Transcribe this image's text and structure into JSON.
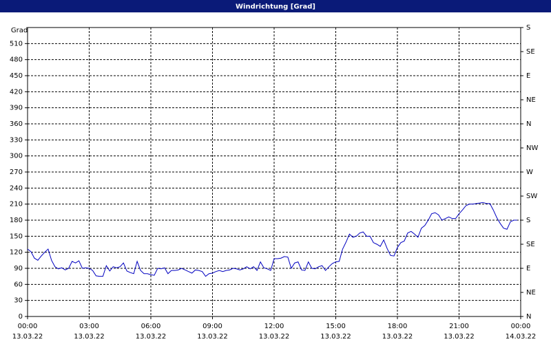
{
  "chart_data": {
    "type": "line",
    "title": "Windrichtung [Grad]",
    "y_label": "Grad",
    "x": [
      0,
      10,
      20,
      30,
      40,
      50,
      60,
      70,
      80,
      90,
      100,
      110,
      120,
      130,
      140,
      150,
      160,
      170,
      180,
      190,
      200,
      210,
      220,
      230,
      240,
      250,
      260,
      270,
      280,
      290,
      300,
      310,
      320,
      330,
      340,
      350,
      360,
      370,
      380,
      390,
      400,
      410,
      420,
      430,
      440,
      450,
      460,
      470,
      480,
      490,
      500,
      510,
      520,
      530,
      540,
      550,
      560,
      570,
      580,
      590,
      600,
      610,
      620,
      630,
      640,
      650,
      660,
      670,
      680,
      690,
      700,
      710,
      720,
      730,
      740,
      750,
      760,
      770,
      780,
      790,
      800,
      810,
      820,
      830,
      840,
      850,
      860,
      870,
      880,
      890,
      900,
      910,
      920,
      930,
      940,
      950,
      960,
      970,
      980,
      990,
      1000,
      1010,
      1020,
      1030,
      1040,
      1050,
      1060,
      1070,
      1080,
      1090,
      1100,
      1110,
      1120,
      1130,
      1140,
      1150,
      1160,
      1170,
      1180,
      1190,
      1200,
      1210,
      1220,
      1230,
      1240,
      1250,
      1260,
      1270,
      1280,
      1290,
      1300,
      1310,
      1320,
      1330,
      1340,
      1350,
      1360,
      1370,
      1380,
      1390,
      1400,
      1410,
      1420,
      1430
    ],
    "series": [
      {
        "name": "Windrichtung",
        "color": "#0000c0",
        "values": [
          126,
          121,
          109,
          105,
          113,
          120,
          126,
          105,
          93,
          89,
          91,
          87,
          90,
          103,
          100,
          104,
          90,
          91,
          90,
          86,
          76,
          75,
          75,
          95,
          85,
          93,
          91,
          93,
          100,
          85,
          82,
          80,
          103,
          86,
          80,
          80,
          78,
          77,
          90,
          89,
          91,
          80,
          86,
          86,
          87,
          90,
          87,
          84,
          81,
          87,
          86,
          84,
          75,
          80,
          81,
          84,
          86,
          84,
          86,
          87,
          90,
          89,
          87,
          89,
          93,
          89,
          93,
          86,
          102,
          91,
          89,
          86,
          108,
          108,
          109,
          112,
          111,
          90,
          100,
          102,
          87,
          86,
          102,
          90,
          89,
          93,
          95,
          86,
          93,
          99,
          102,
          103,
          126,
          139,
          154,
          148,
          150,
          156,
          158,
          150,
          150,
          138,
          135,
          131,
          143,
          127,
          114,
          113,
          129,
          138,
          141,
          156,
          159,
          154,
          148,
          165,
          170,
          180,
          192,
          194,
          190,
          180,
          183,
          186,
          183,
          183,
          192,
          199,
          207,
          210,
          210,
          211,
          212,
          213,
          211,
          211,
          199,
          185,
          174,
          165,
          163,
          177,
          180,
          180
        ]
      }
    ],
    "xlim": [
      0,
      1440
    ],
    "xticks": [
      {
        "value": 0,
        "label": "00:00",
        "date": "13.03.22"
      },
      {
        "value": 180,
        "label": "03:00",
        "date": "13.03.22"
      },
      {
        "value": 360,
        "label": "06:00",
        "date": "13.03.22"
      },
      {
        "value": 540,
        "label": "09:00",
        "date": "13.03.22"
      },
      {
        "value": 720,
        "label": "12:00",
        "date": "13.03.22"
      },
      {
        "value": 900,
        "label": "15:00",
        "date": "13.03.22"
      },
      {
        "value": 1080,
        "label": "18:00",
        "date": "13.03.22"
      },
      {
        "value": 1260,
        "label": "21:00",
        "date": "13.03.22"
      },
      {
        "value": 1440,
        "label": "00:00",
        "date": "14.03.22"
      }
    ],
    "ylim": [
      0,
      540
    ],
    "yticks": [
      0,
      30,
      60,
      90,
      120,
      150,
      180,
      210,
      240,
      270,
      300,
      330,
      360,
      390,
      420,
      450,
      480,
      510
    ],
    "y2lim": [
      0,
      540
    ],
    "y2ticks": [
      {
        "value": 0,
        "label": "N"
      },
      {
        "value": 45,
        "label": "NE"
      },
      {
        "value": 90,
        "label": "E"
      },
      {
        "value": 135,
        "label": "SE"
      },
      {
        "value": 180,
        "label": "S"
      },
      {
        "value": 225,
        "label": "SW"
      },
      {
        "value": 270,
        "label": "W"
      },
      {
        "value": 315,
        "label": "NW"
      },
      {
        "value": 360,
        "label": "N"
      },
      {
        "value": 405,
        "label": "NE"
      },
      {
        "value": 450,
        "label": "E"
      },
      {
        "value": 495,
        "label": "SE"
      },
      {
        "value": 540,
        "label": "S"
      }
    ],
    "grid": true
  }
}
